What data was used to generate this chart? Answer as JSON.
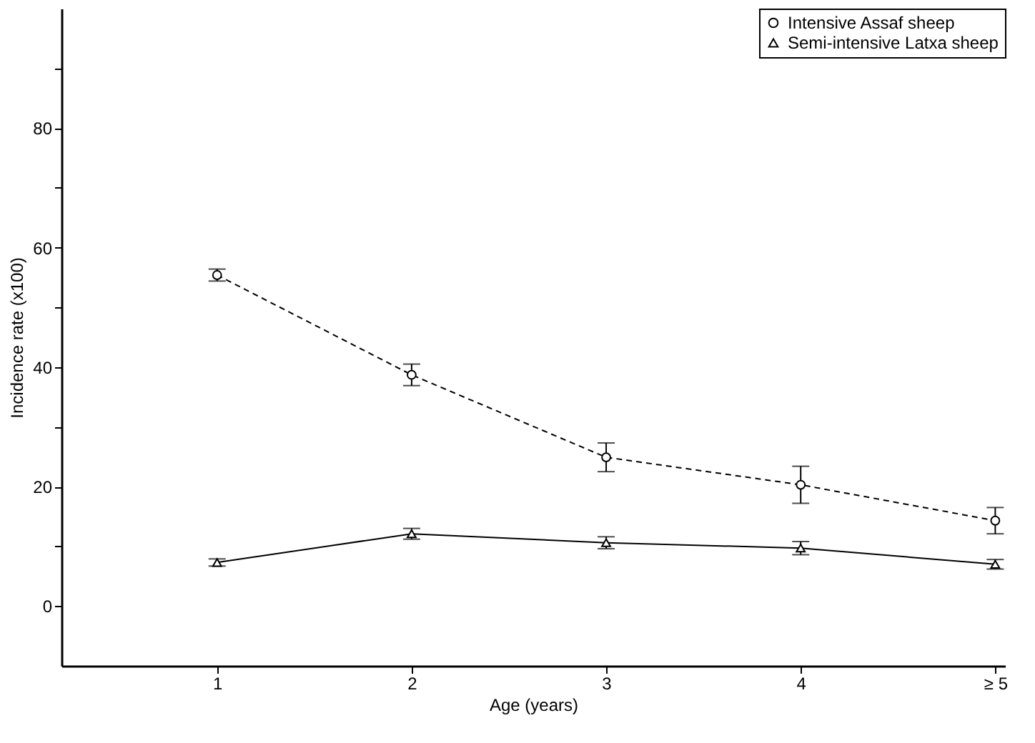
{
  "chart_data": {
    "type": "line",
    "xlabel": "Age (years)",
    "ylabel": "Incidence rate (x100)",
    "categories": [
      "1",
      "2",
      "3",
      "4",
      "≥ 5"
    ],
    "series": [
      {
        "name": "Intensive Assaf sheep",
        "color": "#000000",
        "marker": "circle",
        "line_style": "dashed",
        "values": [
          55.4,
          38.7,
          24.9,
          20.3,
          14.3
        ],
        "errors": [
          1.0,
          1.8,
          2.4,
          3.1,
          2.2
        ]
      },
      {
        "name": "Semi-intensive Latxa sheep",
        "color": "#000000",
        "marker": "triangle",
        "line_style": "solid",
        "values": [
          7.3,
          12.1,
          10.6,
          9.7,
          7.0
        ],
        "errors": [
          0.6,
          0.9,
          1.0,
          1.1,
          0.8
        ]
      }
    ],
    "ylim": [
      -10,
      100
    ],
    "yticks": [
      0,
      {
        "value": 10,
        "label": null
      },
      20,
      {
        "value": 30,
        "label": null
      },
      40,
      {
        "value": 50,
        "label": null
      },
      60,
      {
        "value": 70,
        "label": null
      },
      80,
      {
        "value": 90,
        "label": null
      }
    ],
    "grid": false,
    "legend": "top right"
  }
}
